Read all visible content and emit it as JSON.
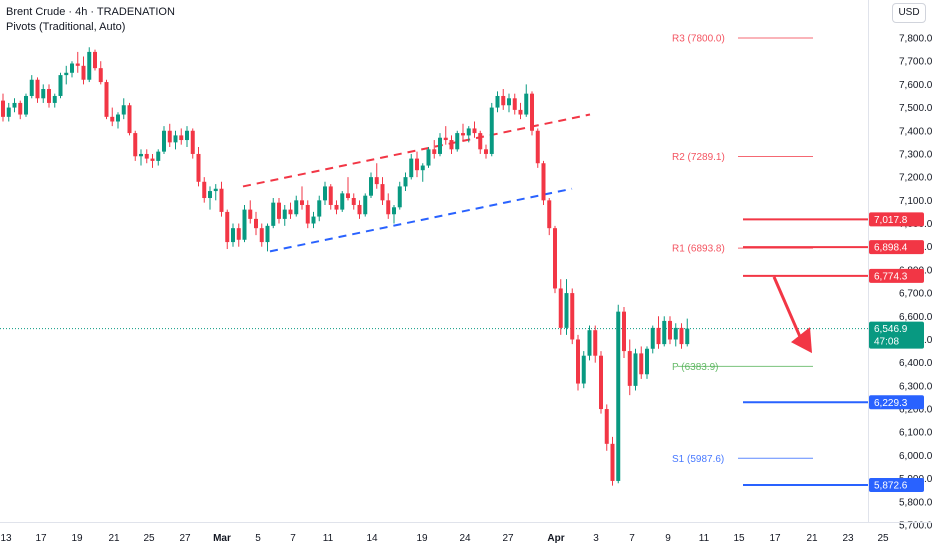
{
  "header": {
    "title": "Brent Crude · 4h · TRADENATION",
    "indicator": "Pivots (Traditional, Auto)",
    "currency": "USD"
  },
  "chart_data": {
    "type": "candlestick",
    "ylim": [
      5700,
      7900
    ],
    "y_ticks": [
      "7,800.0",
      "7,700.0",
      "7,600.0",
      "7,500.0",
      "7,400.0",
      "7,300.0",
      "7,200.0",
      "7,100.0",
      "7,000.0",
      "6,900.0",
      "6,800.0",
      "6,700.0",
      "6,600.0",
      "6,500.0",
      "6,400.0",
      "6,300.0",
      "6,200.0",
      "6,100.0",
      "6,000.0",
      "5,900.0",
      "5,800.0",
      "5,700.0"
    ],
    "x_ticks": [
      "13",
      "17",
      "19",
      "21",
      "25",
      "27",
      "Mar",
      "5",
      "7",
      "11",
      "14",
      "19",
      "24",
      "27",
      "Apr",
      "3",
      "7",
      "9",
      "11",
      "15",
      "17",
      "21",
      "23",
      "25"
    ],
    "last_price": "6,546.9",
    "countdown": "47:08",
    "colors": {
      "up": "#089981",
      "down": "#f23645",
      "resistance": "#f23645",
      "support": "#2962ff",
      "last": "#089981"
    },
    "pivots": [
      {
        "label": "R3 (7800.0)",
        "value": 7800.0,
        "color": "#f23645"
      },
      {
        "label": "R2 (7289.1)",
        "value": 7289.1,
        "color": "#f23645"
      },
      {
        "label": "R1 (6893.8)",
        "value": 6893.8,
        "color": "#f23645"
      },
      {
        "label": "P (6383.9)",
        "value": 6383.9,
        "color": "#4caf50"
      },
      {
        "label": "S1 (5987.6)",
        "value": 5987.6,
        "color": "#2962ff"
      }
    ],
    "levels": [
      {
        "value": 7017.8,
        "label": "7,017.8",
        "kind": "resistance"
      },
      {
        "value": 6898.4,
        "label": "6,898.4",
        "kind": "resistance"
      },
      {
        "value": 6774.3,
        "label": "6,774.3",
        "kind": "resistance"
      },
      {
        "value": 6229.3,
        "label": "6,229.3",
        "kind": "support"
      },
      {
        "value": 5872.6,
        "label": "5,872.6",
        "kind": "support"
      }
    ],
    "channel": {
      "upper": {
        "from": {
          "x": "Mar 4",
          "y": 7160
        },
        "to": {
          "x": "Apr 2",
          "y": 7470
        }
      },
      "lower": {
        "from": {
          "x": "Mar 5",
          "y": 6880
        },
        "to": {
          "x": "Mar 31",
          "y": 7150
        }
      }
    },
    "arrow": {
      "from": {
        "x": "Apr 17",
        "y": 6770
      },
      "to": {
        "x": "Apr 20",
        "y": 6450
      }
    },
    "candles": [
      [
        7530,
        7560,
        7440,
        7460
      ],
      [
        7460,
        7520,
        7440,
        7500
      ],
      [
        7500,
        7540,
        7480,
        7520
      ],
      [
        7520,
        7530,
        7450,
        7470
      ],
      [
        7470,
        7560,
        7460,
        7550
      ],
      [
        7550,
        7640,
        7540,
        7620
      ],
      [
        7620,
        7630,
        7520,
        7540
      ],
      [
        7540,
        7600,
        7520,
        7580
      ],
      [
        7580,
        7600,
        7500,
        7520
      ],
      [
        7520,
        7560,
        7500,
        7550
      ],
      [
        7550,
        7650,
        7540,
        7640
      ],
      [
        7640,
        7680,
        7600,
        7650
      ],
      [
        7650,
        7700,
        7630,
        7690
      ],
      [
        7690,
        7740,
        7650,
        7680
      ],
      [
        7680,
        7720,
        7600,
        7620
      ],
      [
        7620,
        7760,
        7610,
        7740
      ],
      [
        7740,
        7750,
        7660,
        7670
      ],
      [
        7670,
        7700,
        7600,
        7610
      ],
      [
        7610,
        7620,
        7450,
        7460
      ],
      [
        7460,
        7500,
        7420,
        7440
      ],
      [
        7440,
        7480,
        7410,
        7470
      ],
      [
        7470,
        7540,
        7450,
        7510
      ],
      [
        7510,
        7520,
        7380,
        7390
      ],
      [
        7390,
        7400,
        7270,
        7290
      ],
      [
        7290,
        7320,
        7250,
        7300
      ],
      [
        7300,
        7320,
        7260,
        7280
      ],
      [
        7280,
        7300,
        7240,
        7270
      ],
      [
        7270,
        7320,
        7250,
        7310
      ],
      [
        7310,
        7420,
        7300,
        7400
      ],
      [
        7400,
        7430,
        7330,
        7350
      ],
      [
        7350,
        7400,
        7320,
        7380
      ],
      [
        7380,
        7410,
        7340,
        7360
      ],
      [
        7360,
        7420,
        7330,
        7400
      ],
      [
        7400,
        7410,
        7280,
        7300
      ],
      [
        7300,
        7330,
        7160,
        7180
      ],
      [
        7180,
        7200,
        7090,
        7110
      ],
      [
        7110,
        7160,
        7060,
        7140
      ],
      [
        7140,
        7170,
        7100,
        7150
      ],
      [
        7150,
        7180,
        7030,
        7050
      ],
      [
        7050,
        7060,
        6890,
        6920
      ],
      [
        6920,
        7000,
        6900,
        6980
      ],
      [
        6980,
        7000,
        6900,
        6930
      ],
      [
        6930,
        7080,
        6920,
        7060
      ],
      [
        7060,
        7100,
        7000,
        7020
      ],
      [
        7020,
        7050,
        6950,
        6980
      ],
      [
        6980,
        7000,
        6900,
        6920
      ],
      [
        6920,
        7000,
        6880,
        6990
      ],
      [
        6990,
        7110,
        6980,
        7090
      ],
      [
        7090,
        7110,
        7000,
        7020
      ],
      [
        7020,
        7080,
        6990,
        7060
      ],
      [
        7060,
        7090,
        7020,
        7040
      ],
      [
        7040,
        7120,
        7030,
        7100
      ],
      [
        7100,
        7160,
        7060,
        7080
      ],
      [
        7080,
        7100,
        6980,
        7000
      ],
      [
        7000,
        7050,
        6980,
        7030
      ],
      [
        7030,
        7120,
        7010,
        7100
      ],
      [
        7100,
        7180,
        7080,
        7160
      ],
      [
        7160,
        7170,
        7060,
        7080
      ],
      [
        7080,
        7100,
        7040,
        7060
      ],
      [
        7060,
        7140,
        7050,
        7130
      ],
      [
        7130,
        7200,
        7100,
        7110
      ],
      [
        7110,
        7130,
        7060,
        7080
      ],
      [
        7080,
        7100,
        7020,
        7040
      ],
      [
        7040,
        7130,
        7030,
        7120
      ],
      [
        7120,
        7220,
        7110,
        7200
      ],
      [
        7200,
        7260,
        7150,
        7170
      ],
      [
        7170,
        7200,
        7080,
        7100
      ],
      [
        7100,
        7130,
        7020,
        7040
      ],
      [
        7040,
        7080,
        7000,
        7070
      ],
      [
        7070,
        7180,
        7060,
        7160
      ],
      [
        7160,
        7220,
        7140,
        7200
      ],
      [
        7200,
        7300,
        7190,
        7280
      ],
      [
        7280,
        7310,
        7200,
        7230
      ],
      [
        7230,
        7260,
        7180,
        7250
      ],
      [
        7250,
        7330,
        7240,
        7320
      ],
      [
        7320,
        7360,
        7280,
        7300
      ],
      [
        7300,
        7390,
        7290,
        7370
      ],
      [
        7370,
        7420,
        7340,
        7360
      ],
      [
        7360,
        7380,
        7300,
        7320
      ],
      [
        7320,
        7400,
        7310,
        7390
      ],
      [
        7390,
        7430,
        7360,
        7380
      ],
      [
        7380,
        7420,
        7350,
        7410
      ],
      [
        7410,
        7440,
        7370,
        7390
      ],
      [
        7390,
        7400,
        7300,
        7320
      ],
      [
        7320,
        7340,
        7280,
        7300
      ],
      [
        7300,
        7520,
        7290,
        7500
      ],
      [
        7500,
        7570,
        7480,
        7550
      ],
      [
        7550,
        7580,
        7490,
        7510
      ],
      [
        7510,
        7560,
        7480,
        7540
      ],
      [
        7540,
        7560,
        7470,
        7490
      ],
      [
        7490,
        7520,
        7450,
        7470
      ],
      [
        7470,
        7600,
        7460,
        7560
      ],
      [
        7560,
        7570,
        7380,
        7400
      ],
      [
        7400,
        7410,
        7240,
        7260
      ],
      [
        7260,
        7270,
        7080,
        7100
      ],
      [
        7100,
        7110,
        6950,
        6980
      ],
      [
        6980,
        6990,
        6700,
        6720
      ],
      [
        6720,
        6760,
        6520,
        6550
      ],
      [
        6550,
        6760,
        6520,
        6700
      ],
      [
        6700,
        6720,
        6480,
        6500
      ],
      [
        6500,
        6520,
        6280,
        6310
      ],
      [
        6310,
        6450,
        6290,
        6430
      ],
      [
        6430,
        6560,
        6410,
        6540
      ],
      [
        6540,
        6560,
        6400,
        6430
      ],
      [
        6430,
        6450,
        6180,
        6200
      ],
      [
        6200,
        6220,
        6020,
        6050
      ],
      [
        6050,
        6080,
        5870,
        5890
      ],
      [
        5890,
        6650,
        5880,
        6620
      ],
      [
        6620,
        6640,
        6420,
        6450
      ],
      [
        6450,
        6500,
        6260,
        6300
      ],
      [
        6300,
        6460,
        6280,
        6440
      ],
      [
        6440,
        6470,
        6330,
        6350
      ],
      [
        6350,
        6470,
        6330,
        6460
      ],
      [
        6460,
        6560,
        6440,
        6550
      ],
      [
        6550,
        6600,
        6460,
        6480
      ],
      [
        6480,
        6600,
        6470,
        6580
      ],
      [
        6580,
        6600,
        6480,
        6500
      ],
      [
        6500,
        6570,
        6470,
        6550
      ],
      [
        6550,
        6570,
        6460,
        6480
      ],
      [
        6480,
        6590,
        6470,
        6547
      ]
    ]
  }
}
